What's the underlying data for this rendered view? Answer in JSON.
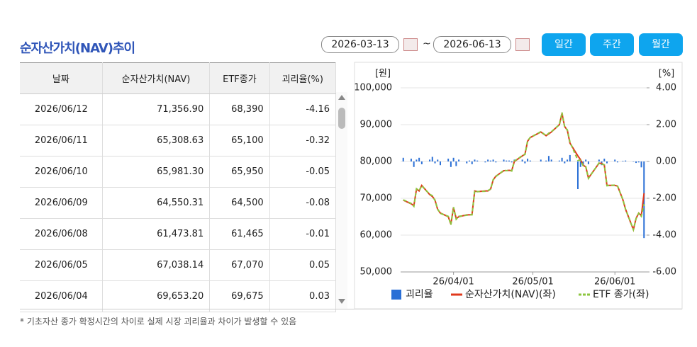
{
  "header": {
    "title": "순자산가치(NAV)추이",
    "date_from": "2026-03-13",
    "separator": "~",
    "date_to": "2026-06-13",
    "buttons": [
      "일간",
      "주간",
      "월간"
    ]
  },
  "table": {
    "columns": [
      "날짜",
      "순자산가치(NAV)",
      "ETF종가",
      "괴리율(%)"
    ],
    "rows": [
      [
        "2026/06/12",
        "71,356.90",
        "68,390",
        "-4.16"
      ],
      [
        "2026/06/11",
        "65,308.63",
        "65,100",
        "-0.32"
      ],
      [
        "2026/06/10",
        "65,981.30",
        "65,950",
        "-0.05"
      ],
      [
        "2026/06/09",
        "64,550.31",
        "64,500",
        "-0.08"
      ],
      [
        "2026/06/08",
        "61,473.81",
        "61,465",
        "-0.01"
      ],
      [
        "2026/06/05",
        "67,038.14",
        "67,070",
        "0.05"
      ],
      [
        "2026/06/04",
        "69,653.20",
        "69,675",
        "0.03"
      ]
    ]
  },
  "chart_data": {
    "type": "line",
    "y_label": "[원]",
    "y2_label": "[%]",
    "x": [
      "2026-03-13",
      "2026-03-16",
      "2026-03-17",
      "2026-03-18",
      "2026-03-19",
      "2026-03-20",
      "2026-03-23",
      "2026-03-24",
      "2026-03-25",
      "2026-03-26",
      "2026-03-27",
      "2026-03-30",
      "2026-03-31",
      "2026-04-01",
      "2026-04-02",
      "2026-04-03",
      "2026-04-06",
      "2026-04-07",
      "2026-04-08",
      "2026-04-09",
      "2026-04-10",
      "2026-04-13",
      "2026-04-14",
      "2026-04-15",
      "2026-04-16",
      "2026-04-17",
      "2026-04-20",
      "2026-04-21",
      "2026-04-22",
      "2026-04-23",
      "2026-04-24",
      "2026-04-27",
      "2026-04-28",
      "2026-04-29",
      "2026-04-30",
      "2026-05-04",
      "2026-05-06",
      "2026-05-07",
      "2026-05-08",
      "2026-05-11",
      "2026-05-12",
      "2026-05-13",
      "2026-05-14",
      "2026-05-15",
      "2026-05-18",
      "2026-05-19",
      "2026-05-20",
      "2026-05-21",
      "2026-05-22",
      "2026-05-26",
      "2026-05-27",
      "2026-05-28",
      "2026-05-29",
      "2026-06-01",
      "2026-06-02",
      "2026-06-04",
      "2026-06-05",
      "2026-06-08",
      "2026-06-09",
      "2026-06-10",
      "2026-06-11",
      "2026-06-12"
    ],
    "series": [
      {
        "name": "괴리율",
        "type": "bar",
        "axis": "y2",
        "color": "#2a6fd6",
        "values": [
          0.2,
          0.15,
          -0.3,
          0.1,
          0.2,
          -0.15,
          0.1,
          0.25,
          -0.1,
          0.1,
          -0.2,
          0.15,
          -0.3,
          0.2,
          -0.25,
          0.1,
          -0.1,
          0.05,
          -0.15,
          0.1,
          0.05,
          -0.05,
          0.1,
          0.05,
          0.1,
          -0.05,
          0.1,
          0.05,
          0.05,
          -0.05,
          0.1,
          0.1,
          -0.1,
          0.15,
          0.05,
          0.1,
          0.05,
          0.3,
          0.1,
          0.05,
          0.2,
          -0.1,
          0.1,
          0.35,
          -1.5,
          -0.3,
          -0.2,
          0.1,
          -0.15,
          0.1,
          -0.2,
          0.15,
          -0.1,
          0.1,
          -0.05,
          0.03,
          0.05,
          -0.01,
          -0.08,
          -0.05,
          -0.32,
          -4.16
        ]
      },
      {
        "name": "순자산가치(NAV)(좌)",
        "type": "line",
        "color": "#e0391c",
        "values": [
          69500,
          68500,
          68000,
          72500,
          72000,
          73500,
          71000,
          70500,
          69500,
          67000,
          66000,
          65000,
          63000,
          67500,
          64500,
          65000,
          65500,
          65500,
          65600,
          72000,
          71800,
          72000,
          72000,
          72500,
          75000,
          76000,
          77500,
          77500,
          77600,
          77500,
          80000,
          81500,
          82000,
          85500,
          86500,
          88000,
          87000,
          87500,
          88000,
          90000,
          93000,
          89500,
          88500,
          85000,
          81500,
          80500,
          79000,
          78500,
          75500,
          79500,
          79500,
          79000,
          73500,
          73500,
          73300,
          69653.2,
          67038.14,
          61473.81,
          64550.31,
          65981.3,
          65308.63,
          71356.9
        ]
      },
      {
        "name": "ETF 종가(좌)",
        "type": "line",
        "style": "dashed",
        "color": "#8dc63f",
        "values": [
          69600,
          68600,
          67800,
          72600,
          72100,
          73400,
          71100,
          70700,
          69400,
          67100,
          65900,
          65100,
          62800,
          67600,
          64300,
          65100,
          65400,
          65500,
          65500,
          72100,
          71800,
          71900,
          72100,
          72500,
          75100,
          75900,
          77600,
          77500,
          77600,
          77400,
          80100,
          81600,
          81900,
          85600,
          86500,
          88100,
          87000,
          87700,
          88100,
          90000,
          93300,
          89400,
          88600,
          85300,
          80300,
          80300,
          78800,
          78600,
          75400,
          79600,
          79300,
          79100,
          73400,
          73600,
          73300,
          69675,
          67070,
          61465,
          64500,
          65950,
          65100,
          68390
        ]
      }
    ],
    "xlim": [
      "2026-03-12",
      "2026-06-13"
    ],
    "xticks": [
      {
        "value": "2026-04-01",
        "label": "26/04/01"
      },
      {
        "value": "2026-05-01",
        "label": "26/05/01"
      },
      {
        "value": "2026-06-01",
        "label": "26/06/01"
      }
    ],
    "ylim": [
      50000,
      100000
    ],
    "yticks": [
      {
        "value": 50000,
        "label": "50,000"
      },
      {
        "value": 60000,
        "label": "60,000"
      },
      {
        "value": 70000,
        "label": "70,000"
      },
      {
        "value": 80000,
        "label": "80,000"
      },
      {
        "value": 90000,
        "label": "90,000"
      },
      {
        "value": 100000,
        "label": "100,000"
      }
    ],
    "y2lim": [
      -6,
      4
    ],
    "y2ticks": [
      {
        "value": -6,
        "label": "-6.00"
      },
      {
        "value": -4,
        "label": "-4.00"
      },
      {
        "value": -2,
        "label": "-2.00"
      },
      {
        "value": 0,
        "label": "0.00"
      },
      {
        "value": 2,
        "label": "2.00"
      },
      {
        "value": 4,
        "label": "4.00"
      }
    ],
    "grid": true,
    "legend": "bottom"
  },
  "footnote": "* 기초자산 종가 확정시간의 차이로 실제 시장 괴리율과 차이가 발생할 수 있음"
}
